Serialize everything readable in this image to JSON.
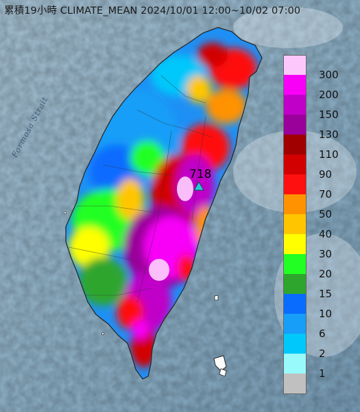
{
  "title": "累積19小時 CLIMATE_MEAN 2024/10/01 12:00~10/02 07:00",
  "strait_label": "Formosa Strait",
  "max_marker": {
    "value": "718",
    "symbol": "triangle",
    "color": "#29c9d9"
  },
  "legend": [
    {
      "label": "300",
      "color": "#fcc8fc"
    },
    {
      "label": "200",
      "color": "#f800f8"
    },
    {
      "label": "150",
      "color": "#c000c8"
    },
    {
      "label": "130",
      "color": "#9a009a"
    },
    {
      "label": "110",
      "color": "#a00000"
    },
    {
      "label": "90",
      "color": "#d20000"
    },
    {
      "label": "70",
      "color": "#ff1010"
    },
    {
      "label": "50",
      "color": "#ff9200"
    },
    {
      "label": "40",
      "color": "#ffc600"
    },
    {
      "label": "30",
      "color": "#ffff00"
    },
    {
      "label": "20",
      "color": "#22ff22"
    },
    {
      "label": "15",
      "color": "#2ea62e"
    },
    {
      "label": "10",
      "color": "#0a6cff"
    },
    {
      "label": "6",
      "color": "#169ef8"
    },
    {
      "label": "2",
      "color": "#00c8fa"
    },
    {
      "label": "1",
      "color": "#98fafa"
    },
    {
      "label": "",
      "color": "#c0c0c0"
    }
  ],
  "colors": {
    "sea": "#8fb3c9",
    "land_outline": "#222222"
  }
}
